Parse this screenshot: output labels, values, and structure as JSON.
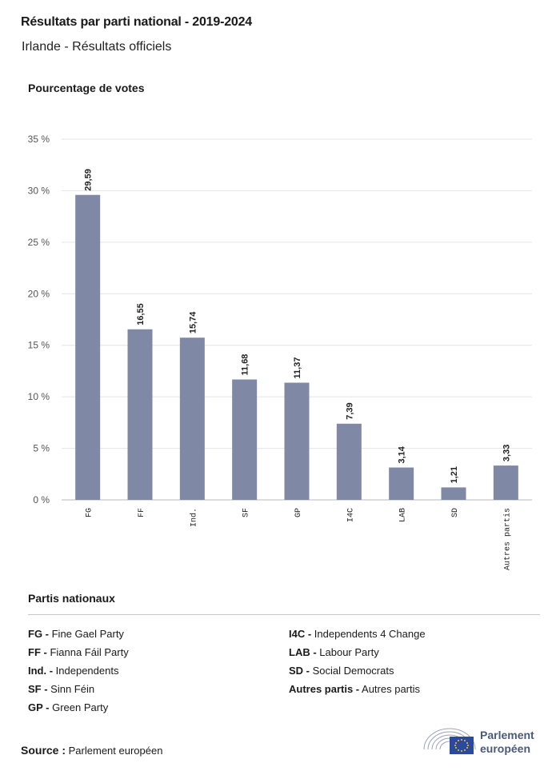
{
  "header": {
    "title": "Résultats par parti national - 2019-2024",
    "subtitle": "Irlande - Résultats officiels"
  },
  "chart_data": {
    "type": "bar",
    "ylabel": "Pourcentage de votes",
    "categories": [
      "FG",
      "FF",
      "Ind.",
      "SF",
      "GP",
      "I4C",
      "LAB",
      "SD",
      "Autres partis"
    ],
    "values": [
      29.59,
      16.55,
      15.74,
      11.68,
      11.37,
      7.39,
      3.14,
      1.21,
      3.33
    ],
    "value_labels": [
      "29,59",
      "16,55",
      "15,74",
      "11,68",
      "11,37",
      "7,39",
      "3,14",
      "1,21",
      "3,33"
    ],
    "ylim": [
      0,
      35
    ],
    "yticks": [
      0,
      5,
      10,
      15,
      20,
      25,
      30,
      35
    ],
    "ytick_labels": [
      "0 %",
      "5 %",
      "10 %",
      "15 %",
      "20 %",
      "25 %",
      "30 %",
      "35 %"
    ],
    "grid": true,
    "bar_color": "#7f89a6"
  },
  "legend": {
    "title": "Partis nationaux",
    "items": [
      {
        "abbr": "FG -",
        "name": "Fine Gael Party"
      },
      {
        "abbr": "FF -",
        "name": "Fianna Fáil Party"
      },
      {
        "abbr": "Ind. -",
        "name": "Independents"
      },
      {
        "abbr": "SF -",
        "name": "Sinn Féin"
      },
      {
        "abbr": "GP -",
        "name": "Green Party"
      },
      {
        "abbr": "I4C -",
        "name": "Independents 4 Change"
      },
      {
        "abbr": "LAB -",
        "name": "Labour Party"
      },
      {
        "abbr": "SD -",
        "name": "Social Democrats"
      },
      {
        "abbr": "Autres partis -",
        "name": "Autres partis"
      }
    ]
  },
  "footer": {
    "source_label": "Source :",
    "source_value": "Parlement européen",
    "logo_line1": "Parlement",
    "logo_line2": "européen"
  }
}
